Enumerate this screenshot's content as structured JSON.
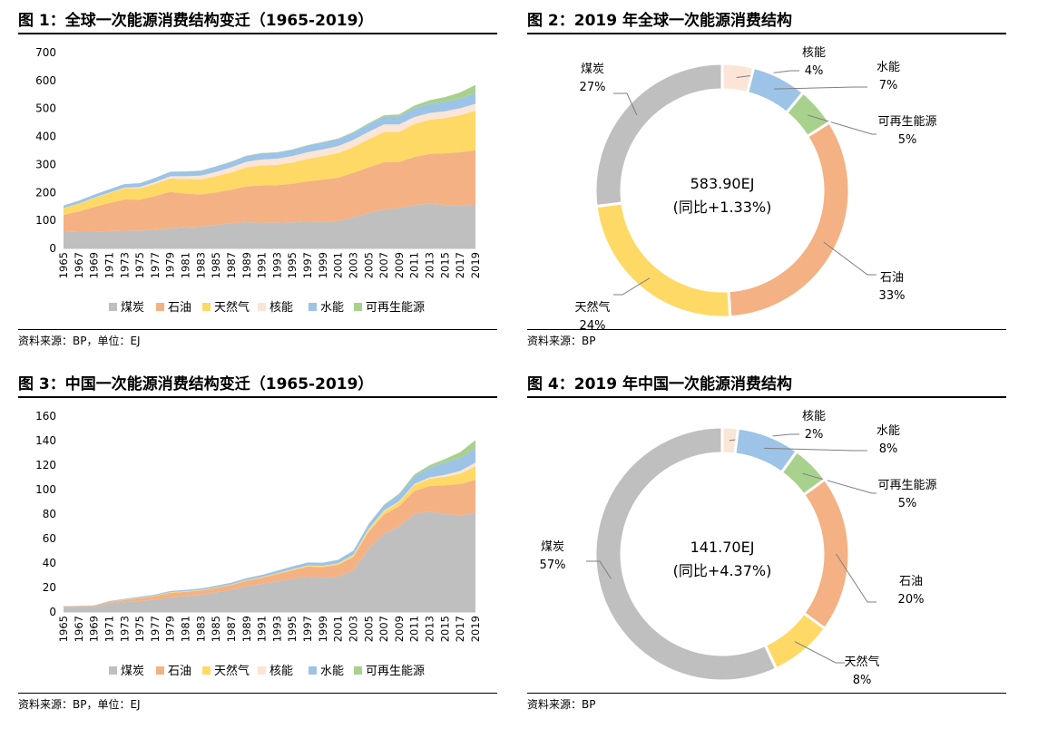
{
  "colors": {
    "coal": "#bfbfbf",
    "oil": "#f4b183",
    "gas": "#ffd966",
    "nuclear": "#fbe5d6",
    "hydro": "#9dc3e6",
    "renewable": "#a9d18e"
  },
  "chart_data": [
    {
      "id": "fig1",
      "type": "area",
      "stacked": true,
      "title": "图 1：全球一次能源消费结构变迁（1965-2019）",
      "source": "资料来源：BP，单位：EJ",
      "ylim": [
        0,
        700
      ],
      "yticks": [
        "0",
        "100",
        "200",
        "300",
        "400",
        "500",
        "600",
        "700"
      ],
      "xlabels": [
        "1965",
        "1967",
        "1969",
        "1971",
        "1973",
        "1975",
        "1977",
        "1979",
        "1981",
        "1983",
        "1985",
        "1987",
        "1989",
        "1991",
        "1993",
        "1995",
        "1997",
        "1999",
        "2001",
        "2003",
        "2005",
        "2007",
        "2009",
        "2011",
        "2013",
        "2015",
        "2017",
        "2019"
      ],
      "legend_position": "bottom",
      "grid": false,
      "x": [
        1965,
        1967,
        1969,
        1971,
        1973,
        1975,
        1977,
        1979,
        1981,
        1983,
        1985,
        1987,
        1989,
        1991,
        1993,
        1995,
        1997,
        1999,
        2001,
        2003,
        2005,
        2007,
        2009,
        2011,
        2013,
        2015,
        2017,
        2019
      ],
      "series": [
        {
          "name": "煤炭",
          "key": "coal",
          "values": [
            58,
            60,
            60,
            62,
            63,
            64,
            67,
            72,
            76,
            78,
            84,
            90,
            94,
            92,
            92,
            93,
            96,
            94,
            98,
            112,
            126,
            140,
            144,
            155,
            160,
            155,
            152,
            158
          ]
        },
        {
          "name": "石油",
          "key": "oil",
          "values": [
            62,
            72,
            88,
            100,
            112,
            110,
            120,
            130,
            120,
            115,
            116,
            120,
            128,
            133,
            134,
            138,
            144,
            152,
            155,
            158,
            164,
            168,
            165,
            172,
            178,
            185,
            192,
            193
          ]
        },
        {
          "name": "天然气",
          "key": "gas",
          "values": [
            24,
            28,
            32,
            36,
            40,
            41,
            44,
            48,
            52,
            54,
            58,
            62,
            68,
            72,
            73,
            76,
            80,
            84,
            88,
            92,
            100,
            108,
            108,
            118,
            122,
            126,
            132,
            141
          ]
        },
        {
          "name": "核能",
          "key": "nuclear",
          "values": [
            0.3,
            0.5,
            1,
            1.5,
            2,
            4,
            6,
            8,
            10,
            13,
            16,
            18,
            20,
            21,
            22,
            23,
            24,
            24,
            25,
            26,
            27,
            27,
            26,
            25,
            24,
            24,
            25,
            25
          ]
        },
        {
          "name": "水能",
          "key": "hydro",
          "values": [
            9,
            10,
            11,
            12,
            13,
            14,
            15,
            16,
            17,
            18,
            19,
            20,
            21,
            22,
            22,
            23,
            24,
            25,
            25,
            26,
            27,
            28,
            29,
            31,
            33,
            34,
            35,
            38
          ]
        },
        {
          "name": "可再生能源",
          "key": "renewable",
          "values": [
            0.1,
            0.1,
            0.1,
            0.1,
            0.1,
            0.2,
            0.2,
            0.3,
            0.4,
            0.5,
            0.6,
            0.7,
            0.8,
            1,
            1,
            1.2,
            1.4,
            1.6,
            2,
            2.5,
            3.5,
            5,
            7,
            10,
            13,
            17,
            22,
            29
          ]
        }
      ]
    },
    {
      "id": "fig2",
      "type": "pie",
      "donut": true,
      "title": "图 2：2019 年全球一次能源消费结构",
      "source": "资料来源：BP",
      "center_value": "583.90EJ",
      "center_sub": "(同比+1.33%)",
      "slices": [
        {
          "name": "核能",
          "pct": "4%",
          "value": 4,
          "key": "nuclear"
        },
        {
          "name": "水能",
          "pct": "7%",
          "value": 7,
          "key": "hydro"
        },
        {
          "name": "可再生能源",
          "pct": "5%",
          "value": 5,
          "key": "renewable"
        },
        {
          "name": "石油",
          "pct": "33%",
          "value": 33,
          "key": "oil"
        },
        {
          "name": "天然气",
          "pct": "24%",
          "value": 24,
          "key": "gas"
        },
        {
          "name": "煤炭",
          "pct": "27%",
          "value": 27,
          "key": "coal"
        }
      ]
    },
    {
      "id": "fig3",
      "type": "area",
      "stacked": true,
      "title": "图 3：中国一次能源消费结构变迁（1965-2019）",
      "source": "资料来源：BP，单位：EJ",
      "ylim": [
        0,
        160
      ],
      "yticks": [
        "0",
        "20",
        "40",
        "60",
        "80",
        "100",
        "120",
        "140",
        "160"
      ],
      "xlabels": [
        "1965",
        "1967",
        "1969",
        "1971",
        "1973",
        "1975",
        "1977",
        "1979",
        "1981",
        "1983",
        "1985",
        "1987",
        "1989",
        "1991",
        "1993",
        "1995",
        "1997",
        "1999",
        "2001",
        "2003",
        "2005",
        "2007",
        "2009",
        "2011",
        "2013",
        "2015",
        "2017",
        "2019"
      ],
      "legend_position": "bottom",
      "grid": false,
      "x": [
        1965,
        1967,
        1969,
        1971,
        1973,
        1975,
        1977,
        1979,
        1981,
        1983,
        1985,
        1987,
        1989,
        1991,
        1993,
        1995,
        1997,
        1999,
        2001,
        2003,
        2005,
        2007,
        2009,
        2011,
        2013,
        2015,
        2017,
        2019
      ],
      "series": [
        {
          "name": "煤炭",
          "key": "coal",
          "values": [
            4,
            4,
            4,
            7,
            8,
            9,
            10,
            12,
            13,
            14,
            16,
            18,
            21,
            23,
            25,
            27,
            29,
            28,
            29,
            34,
            52,
            64,
            70,
            80,
            82,
            80,
            79,
            81
          ]
        },
        {
          "name": "石油",
          "key": "oil",
          "values": [
            0.5,
            0.6,
            0.8,
            1.2,
            1.8,
            2.4,
            3,
            3.6,
            3.5,
            3.5,
            3.6,
            4,
            4.5,
            5,
            6,
            7,
            8,
            8.7,
            9.5,
            11,
            13.5,
            15.5,
            16.5,
            19,
            21,
            23.5,
            25.5,
            27
          ]
        },
        {
          "name": "天然气",
          "key": "gas",
          "values": [
            0.1,
            0.1,
            0.1,
            0.2,
            0.2,
            0.3,
            0.4,
            0.5,
            0.5,
            0.5,
            0.5,
            0.5,
            0.6,
            0.6,
            0.6,
            0.7,
            0.8,
            0.9,
            1,
            1.3,
            1.8,
            2.7,
            3.4,
            4.8,
            6,
            7,
            8.5,
            11
          ]
        },
        {
          "name": "核能",
          "key": "nuclear",
          "values": [
            0,
            0,
            0,
            0,
            0,
            0,
            0,
            0,
            0,
            0,
            0,
            0,
            0,
            0,
            0.1,
            0.2,
            0.2,
            0.2,
            0.2,
            0.4,
            0.5,
            0.6,
            0.7,
            0.8,
            1,
            1.5,
            2.3,
            3
          ]
        },
        {
          "name": "水能",
          "key": "hydro",
          "values": [
            0.3,
            0.4,
            0.5,
            0.6,
            0.7,
            0.8,
            0.9,
            1,
            1.1,
            1.3,
            1.4,
            1.5,
            1.6,
            1.7,
            2,
            2.3,
            2.5,
            2.5,
            3,
            3.4,
            4,
            4.5,
            5.5,
            6.5,
            8,
            10,
            10.5,
            11.5
          ]
        },
        {
          "name": "可再生能源",
          "key": "renewable",
          "values": [
            0,
            0,
            0,
            0,
            0,
            0,
            0,
            0,
            0,
            0,
            0,
            0,
            0,
            0,
            0,
            0,
            0,
            0,
            0,
            0,
            0.1,
            0.3,
            0.7,
            1.3,
            2,
            3,
            4.8,
            7
          ]
        }
      ]
    },
    {
      "id": "fig4",
      "type": "pie",
      "donut": true,
      "title": "图 4：2019 年中国一次能源消费结构",
      "source": "资料来源：BP",
      "center_value": "141.70EJ",
      "center_sub": "(同比+4.37%)",
      "slices": [
        {
          "name": "核能",
          "pct": "2%",
          "value": 2,
          "key": "nuclear"
        },
        {
          "name": "水能",
          "pct": "8%",
          "value": 8,
          "key": "hydro"
        },
        {
          "name": "可再生能源",
          "pct": "5%",
          "value": 5,
          "key": "renewable"
        },
        {
          "name": "石油",
          "pct": "20%",
          "value": 20,
          "key": "oil"
        },
        {
          "name": "天然气",
          "pct": "8%",
          "value": 8,
          "key": "gas"
        },
        {
          "name": "煤炭",
          "pct": "57%",
          "value": 57,
          "key": "coal"
        }
      ]
    }
  ]
}
